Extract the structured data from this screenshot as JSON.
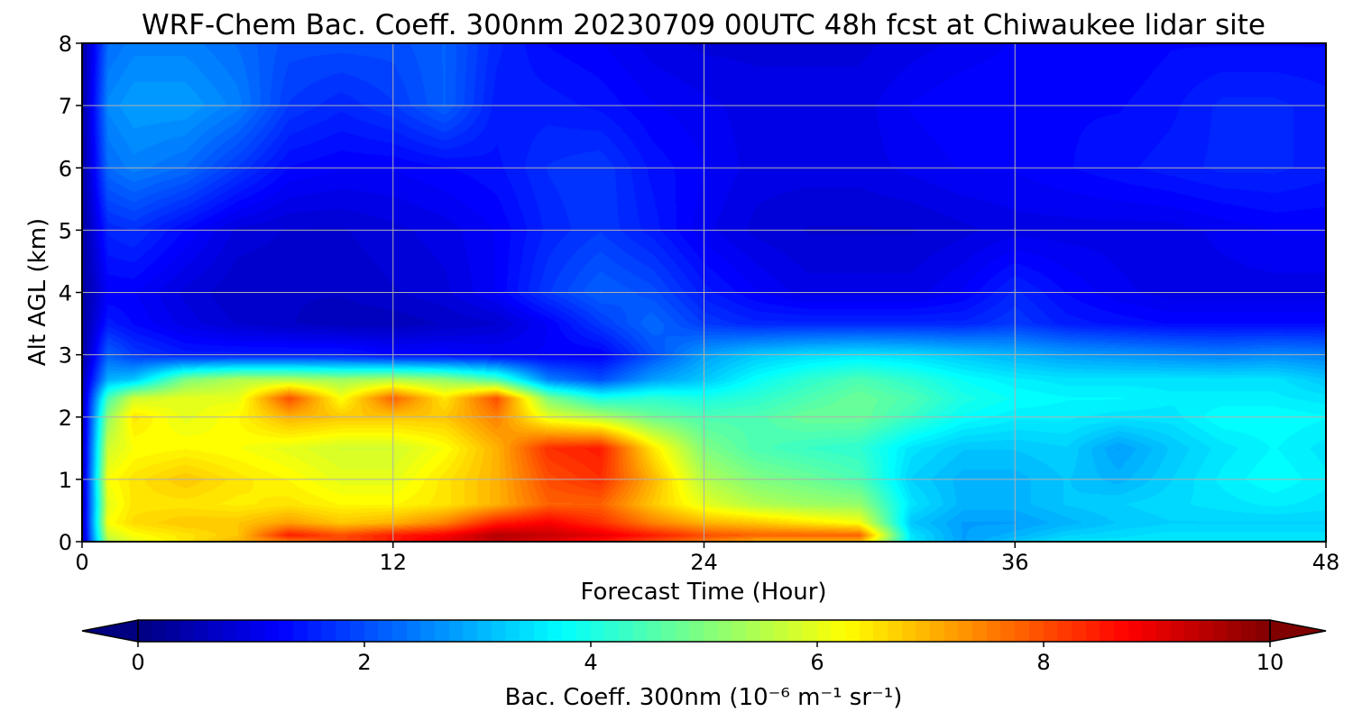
{
  "chart_data": {
    "type": "heatmap",
    "title": "WRF-Chem Bac. Coeff. 300nm  20230709 00UTC 48h fcst at Chiwaukee lidar site",
    "xlabel": "Forecast Time (Hour)",
    "ylabel": "Alt AGL (km)",
    "xlim": [
      0,
      48
    ],
    "ylim": [
      0,
      8
    ],
    "x_ticks": [
      0,
      12,
      24,
      36,
      48
    ],
    "y_ticks": [
      0,
      1,
      2,
      3,
      4,
      5,
      6,
      7,
      8
    ],
    "grid": true,
    "colormap": "jet",
    "colorbar": {
      "label": "Bac. Coeff. 300nm  (10⁻⁶ m⁻¹ sr⁻¹)",
      "range": [
        0,
        10
      ],
      "ticks": [
        0,
        2,
        4,
        6,
        8,
        10
      ],
      "extend": "both",
      "orientation": "horizontal"
    },
    "x": [
      0,
      1,
      2,
      4,
      6,
      8,
      10,
      12,
      14,
      16,
      18,
      20,
      22,
      24,
      26,
      28,
      30,
      32,
      34,
      36,
      38,
      40,
      42,
      44,
      46,
      48
    ],
    "y": [
      0,
      0.1,
      0.3,
      0.6,
      1.0,
      1.5,
      2.0,
      2.3,
      2.6,
      3.0,
      3.5,
      4.0,
      5.0,
      6.0,
      7.0,
      8.0
    ],
    "z": [
      [
        0.5,
        5.5,
        6.0,
        6.5,
        7.0,
        7.5,
        8.0,
        8.5,
        9.0,
        9.3,
        9.0,
        8.5,
        8.0,
        7.5,
        7.0,
        7.0,
        7.0,
        3.5,
        2.8,
        3.2,
        3.5,
        3.5,
        3.5,
        3.5,
        3.5,
        3.5
      ],
      [
        0.5,
        5.8,
        6.2,
        6.5,
        6.8,
        8.5,
        8.0,
        8.5,
        8.8,
        9.5,
        9.3,
        9.0,
        8.5,
        8.0,
        7.8,
        7.8,
        7.8,
        3.5,
        2.8,
        3.0,
        3.3,
        3.4,
        3.5,
        3.5,
        3.5,
        3.5
      ],
      [
        0.5,
        6.2,
        6.6,
        6.8,
        6.8,
        7.2,
        6.8,
        7.0,
        7.5,
        8.5,
        8.8,
        8.3,
        7.5,
        7.0,
        6.8,
        6.5,
        6.2,
        3.2,
        2.8,
        2.8,
        3.0,
        3.2,
        3.3,
        3.3,
        3.3,
        3.3
      ],
      [
        0.5,
        6.0,
        6.5,
        6.5,
        6.4,
        6.5,
        6.3,
        6.3,
        6.5,
        7.0,
        7.8,
        7.8,
        6.8,
        6.0,
        5.5,
        5.3,
        5.2,
        3.5,
        3.0,
        3.0,
        3.2,
        3.3,
        3.4,
        3.5,
        3.6,
        3.5
      ],
      [
        0.5,
        6.2,
        6.5,
        6.8,
        6.5,
        6.3,
        6.0,
        6.0,
        6.5,
        7.0,
        8.0,
        8.3,
        7.0,
        5.5,
        5.0,
        4.8,
        4.5,
        3.3,
        3.0,
        3.0,
        3.2,
        3.0,
        3.3,
        3.6,
        3.8,
        3.6
      ],
      [
        0.5,
        5.8,
        6.2,
        6.3,
        6.2,
        6.0,
        5.8,
        5.8,
        6.2,
        7.0,
        8.3,
        8.5,
        6.5,
        5.0,
        4.5,
        4.3,
        4.2,
        3.5,
        3.2,
        3.2,
        3.3,
        2.8,
        3.2,
        3.5,
        3.7,
        3.5
      ],
      [
        0.5,
        5.2,
        6.5,
        6.0,
        6.3,
        7.0,
        6.8,
        6.8,
        6.8,
        7.5,
        6.0,
        5.5,
        4.8,
        4.5,
        4.5,
        4.8,
        4.8,
        4.3,
        3.8,
        3.6,
        3.6,
        3.5,
        3.5,
        3.8,
        3.8,
        3.7
      ],
      [
        0.5,
        4.5,
        5.8,
        6.0,
        6.0,
        8.0,
        6.2,
        7.8,
        6.5,
        8.0,
        5.0,
        4.0,
        4.2,
        4.0,
        4.2,
        4.5,
        4.8,
        4.5,
        4.0,
        3.8,
        3.7,
        3.7,
        3.6,
        3.6,
        3.6,
        3.5
      ],
      [
        0.5,
        3.0,
        3.2,
        5.0,
        5.5,
        5.5,
        5.3,
        5.5,
        5.2,
        4.5,
        2.5,
        2.0,
        2.8,
        3.2,
        3.8,
        4.2,
        4.5,
        4.2,
        3.8,
        3.6,
        3.5,
        3.5,
        3.5,
        3.5,
        3.5,
        3.2
      ],
      [
        0.3,
        2.2,
        1.8,
        1.5,
        1.5,
        1.5,
        1.5,
        1.3,
        1.3,
        1.2,
        1.2,
        1.2,
        2.0,
        2.8,
        3.2,
        3.4,
        3.5,
        3.4,
        3.2,
        3.0,
        2.8,
        2.7,
        2.6,
        2.5,
        2.6,
        2.5
      ],
      [
        0.3,
        1.5,
        1.3,
        1.0,
        0.8,
        0.7,
        0.6,
        0.6,
        0.7,
        0.8,
        1.2,
        1.8,
        2.3,
        1.8,
        1.6,
        1.6,
        1.6,
        1.6,
        1.6,
        1.8,
        1.5,
        1.4,
        1.3,
        1.3,
        1.3,
        1.3
      ],
      [
        0.3,
        1.2,
        1.2,
        0.9,
        0.7,
        0.7,
        0.7,
        0.8,
        0.9,
        1.2,
        1.8,
        2.2,
        2.0,
        1.5,
        1.2,
        1.0,
        1.0,
        1.0,
        1.2,
        1.6,
        1.3,
        1.1,
        1.0,
        1.0,
        1.0,
        1.0
      ],
      [
        0.3,
        1.6,
        1.7,
        1.3,
        0.9,
        0.8,
        0.8,
        0.9,
        1.0,
        1.2,
        1.6,
        1.8,
        1.5,
        1.1,
        0.9,
        0.8,
        0.8,
        0.8,
        0.9,
        1.0,
        1.0,
        1.0,
        1.0,
        1.1,
        1.2,
        1.2
      ],
      [
        0.3,
        2.3,
        2.5,
        2.3,
        1.8,
        1.3,
        1.2,
        1.2,
        1.3,
        1.4,
        1.7,
        1.8,
        1.4,
        1.2,
        1.0,
        1.0,
        1.0,
        1.1,
        1.2,
        1.2,
        1.3,
        1.4,
        1.5,
        1.6,
        1.6,
        1.5
      ],
      [
        0.3,
        2.6,
        2.8,
        2.8,
        2.5,
        1.8,
        1.6,
        1.8,
        2.2,
        1.5,
        1.5,
        1.4,
        1.2,
        1.1,
        1.0,
        1.0,
        1.0,
        1.2,
        1.3,
        1.3,
        1.3,
        1.3,
        1.4,
        1.6,
        1.6,
        1.5
      ],
      [
        0.3,
        2.3,
        2.5,
        2.5,
        2.3,
        2.0,
        2.0,
        2.0,
        2.2,
        1.6,
        1.3,
        1.2,
        1.0,
        0.9,
        0.9,
        0.9,
        0.9,
        1.0,
        1.1,
        1.2,
        1.2,
        1.2,
        1.3,
        1.3,
        1.3,
        1.3
      ]
    ]
  }
}
